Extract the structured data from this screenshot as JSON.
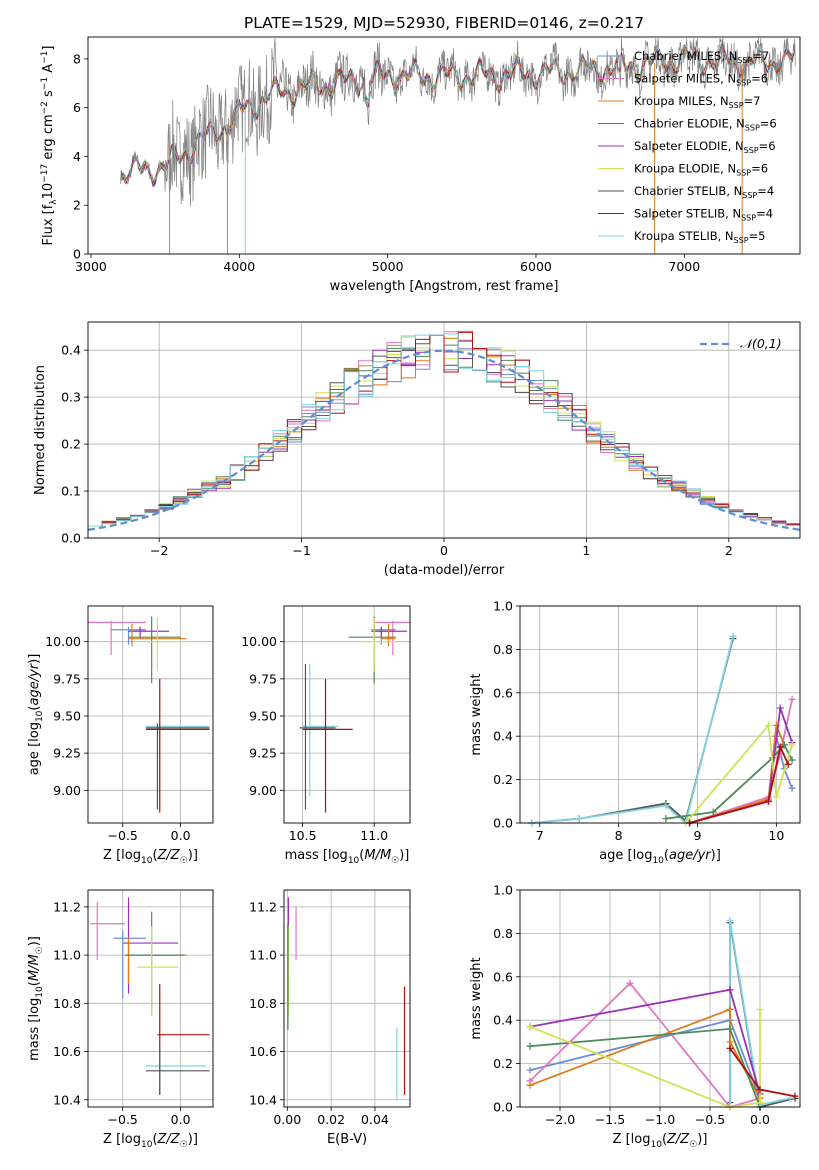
{
  "figure_title": "PLATE=1529, MJD=52930, FIBERID=0146, z=0.217",
  "colors": {
    "Chabrier MILES": "#6b8fd4",
    "Salpeter MILES": "#e377c2",
    "Kroupa MILES": "#e07b1a",
    "Chabrier ELODIE": "#4f8a5b",
    "Salpeter ELODIE": "#9b30b8",
    "Kroupa ELODIE": "#d4e157",
    "Chabrier STELIB": "#555555",
    "Salpeter STELIB": "#b01010",
    "Kroupa STELIB": "#80d4e0",
    "gauss": "#5b8fd6",
    "grid": "#b0b0b0"
  },
  "chart_data": [
    {
      "id": "spectrum",
      "type": "line",
      "title": "PLATE=1529, MJD=52930, FIBERID=0146, z=0.217",
      "xlabel": "wavelength [Angstrom, rest frame]",
      "ylabel": "Flux [fλ10⁻¹⁷ erg cm⁻² s⁻¹ A⁻¹]",
      "xlim": [
        2980,
        7780
      ],
      "ylim": [
        0,
        8.9
      ],
      "xticks": [
        3000,
        4000,
        5000,
        6000,
        7000
      ],
      "yticks": [
        0,
        2,
        4,
        6,
        8
      ],
      "grid": false,
      "legend_position": "right",
      "legend": [
        "Chabrier MILES, N_SSP=7",
        "Salpeter MILES, N_SSP=6",
        "Kroupa MILES, N_SSP=7",
        "Chabrier ELODIE, N_SSP=6",
        "Salpeter ELODIE, N_SSP=6",
        "Kroupa ELODIE, N_SSP=6",
        "Chabrier STELIB, N_SSP=4",
        "Salpeter STELIB, N_SSP=4",
        "Kroupa STELIB, N_SSP=5"
      ],
      "legend_display": [
        {
          "label": "Chabrier MILES, N",
          "sub": "SSP",
          "end": "=7"
        },
        {
          "label": "Salpeter MILES, N",
          "sub": "SSP",
          "end": "=6"
        },
        {
          "label": "Kroupa MILES, N",
          "sub": "SSP",
          "end": "=7"
        },
        {
          "label": "Chabrier ELODIE, N",
          "sub": "SSP",
          "end": "=6"
        },
        {
          "label": "Salpeter ELODIE, N",
          "sub": "SSP",
          "end": "=6"
        },
        {
          "label": "Kroupa ELODIE, N",
          "sub": "SSP",
          "end": "=6"
        },
        {
          "label": "Chabrier STELIB, N",
          "sub": "SSP",
          "end": "=4"
        },
        {
          "label": "Salpeter STELIB, N",
          "sub": "SSP",
          "end": "=4"
        },
        {
          "label": "Kroupa STELIB, N",
          "sub": "SSP",
          "end": "=5"
        }
      ],
      "continuum": [
        [
          3200,
          3.3
        ],
        [
          3500,
          3.6
        ],
        [
          3700,
          4.5
        ],
        [
          3900,
          5.2
        ],
        [
          4000,
          5.8
        ],
        [
          4200,
          6.5
        ],
        [
          4500,
          6.9
        ],
        [
          5000,
          7.3
        ],
        [
          5500,
          7.3
        ],
        [
          6000,
          7.4
        ],
        [
          6500,
          7.6
        ],
        [
          7000,
          8.0
        ],
        [
          7400,
          7.8
        ],
        [
          7750,
          8.0
        ]
      ],
      "dips": [
        [
          3530,
          0
        ],
        [
          3920,
          0
        ],
        [
          4040,
          0
        ],
        [
          6800,
          0
        ],
        [
          7390,
          0
        ]
      ]
    },
    {
      "id": "residuals",
      "type": "histogram",
      "xlabel": "(data-model)/error",
      "ylabel": "Normed distribution",
      "xlim": [
        -2.5,
        2.5
      ],
      "ylim": [
        0,
        0.46
      ],
      "xticks": [
        -2,
        -1,
        0,
        1,
        2
      ],
      "yticks": [
        0.0,
        0.1,
        0.2,
        0.3,
        0.4
      ],
      "grid": true,
      "legend": [
        "𝒩(0,1)"
      ],
      "legend_position": "top-right",
      "bin_width": 0.1
    },
    {
      "id": "age_vs_Z",
      "type": "scatter",
      "xlabel": "Z [log10(Z/Z☉)]",
      "ylabel": "age [log10(age/yr)]",
      "xlim": [
        -0.8,
        0.28
      ],
      "ylim": [
        8.78,
        10.24
      ],
      "xticks": [
        -0.5,
        0.0
      ],
      "yticks": [
        9.0,
        9.25,
        9.5,
        9.75,
        10.0
      ],
      "grid": true,
      "points": [
        {
          "m": "Salpeter MILES",
          "x": -0.6,
          "y": 10.13,
          "xe": [
            -0.8,
            -0.3
          ],
          "ye": [
            9.91,
            10.14
          ]
        },
        {
          "m": "Chabrier MILES",
          "x": -0.45,
          "y": 10.08,
          "xe": [
            -0.6,
            -0.3
          ],
          "ye": [
            9.98,
            10.1
          ]
        },
        {
          "m": "Salpeter ELODIE",
          "x": -0.35,
          "y": 10.07,
          "xe": [
            -0.45,
            -0.1
          ],
          "ye": [
            10.02,
            10.1
          ]
        },
        {
          "m": "Kroupa MILES",
          "x": -0.42,
          "y": 10.02,
          "xe": [
            -0.45,
            0.05
          ],
          "ye": [
            9.97,
            10.12
          ]
        },
        {
          "m": "Chabrier ELODIE",
          "x": -0.25,
          "y": 10.03,
          "xe": [
            -0.45,
            0.0
          ],
          "ye": [
            9.72,
            10.17
          ]
        },
        {
          "m": "Kroupa ELODIE",
          "x": -0.2,
          "y": 10.0,
          "xe": [
            -0.3,
            0.05
          ],
          "ye": [
            9.8,
            10.16
          ]
        },
        {
          "m": "Kroupa STELIB",
          "x": -0.18,
          "y": 9.43,
          "xe": [
            -0.3,
            0.25
          ],
          "ye": [
            8.96,
            9.45
          ]
        },
        {
          "m": "Chabrier STELIB",
          "x": -0.2,
          "y": 9.42,
          "xe": [
            -0.3,
            0.25
          ],
          "ye": [
            8.87,
            9.45
          ]
        },
        {
          "m": "Salpeter STELIB",
          "x": -0.18,
          "y": 9.41,
          "xe": [
            -0.3,
            0.25
          ],
          "ye": [
            8.85,
            9.75
          ]
        }
      ]
    },
    {
      "id": "age_vs_mass",
      "type": "scatter",
      "xlabel": "mass [log10(M/M☉)]",
      "ylabel": "",
      "xlim": [
        10.37,
        11.25
      ],
      "ylim": [
        8.78,
        10.24
      ],
      "xticks": [
        10.5,
        11.0
      ],
      "yticks": [
        9.0,
        9.25,
        9.5,
        9.75,
        10.0
      ],
      "grid": true,
      "points": [
        {
          "m": "Salpeter MILES",
          "x": 11.13,
          "y": 10.13,
          "xe": [
            11.0,
            11.25
          ],
          "ye": [
            9.91,
            10.14
          ]
        },
        {
          "m": "Chabrier MILES",
          "x": 11.05,
          "y": 10.08,
          "xe": [
            10.98,
            11.15
          ],
          "ye": [
            9.98,
            10.1
          ]
        },
        {
          "m": "Salpeter ELODIE",
          "x": 11.05,
          "y": 10.07,
          "xe": [
            10.98,
            11.23
          ],
          "ye": [
            10.02,
            10.1
          ]
        },
        {
          "m": "Kroupa MILES",
          "x": 11.1,
          "y": 10.02,
          "xe": [
            11.05,
            11.15
          ],
          "ye": [
            9.97,
            10.12
          ]
        },
        {
          "m": "Chabrier ELODIE",
          "x": 11.0,
          "y": 10.03,
          "xe": [
            10.82,
            11.15
          ],
          "ye": [
            9.72,
            10.17
          ]
        },
        {
          "m": "Kroupa ELODIE",
          "x": 11.0,
          "y": 10.0,
          "xe": [
            10.9,
            11.15
          ],
          "ye": [
            9.8,
            10.16
          ]
        },
        {
          "m": "Kroupa STELIB",
          "x": 10.55,
          "y": 9.43,
          "xe": [
            10.5,
            10.75
          ],
          "ye": [
            8.96,
            9.85
          ]
        },
        {
          "m": "Chabrier STELIB",
          "x": 10.52,
          "y": 9.42,
          "xe": [
            10.48,
            10.73
          ],
          "ye": [
            8.87,
            9.85
          ]
        },
        {
          "m": "Salpeter STELIB",
          "x": 10.66,
          "y": 9.41,
          "xe": [
            10.5,
            10.85
          ],
          "ye": [
            8.85,
            9.75
          ]
        }
      ]
    },
    {
      "id": "mass_weight_vs_age",
      "type": "line",
      "xlabel": "age [log10(age/yr)]",
      "ylabel": "mass weight",
      "xlim": [
        6.75,
        10.3
      ],
      "ylim": [
        0,
        1.0
      ],
      "xticks": [
        7,
        8,
        9,
        10
      ],
      "yticks": [
        0.0,
        0.2,
        0.4,
        0.6,
        0.8,
        1.0
      ],
      "grid": true,
      "series": [
        {
          "m": "Chabrier STELIB",
          "x": [
            6.9,
            7.5,
            8.6,
            8.85,
            9.45
          ],
          "y": [
            0.0,
            0.02,
            0.09,
            0.01,
            0.85
          ]
        },
        {
          "m": "Kroupa STELIB",
          "x": [
            6.9,
            7.5,
            8.6,
            8.85,
            9.45
          ],
          "y": [
            0.0,
            0.02,
            0.08,
            0.0,
            0.86
          ]
        },
        {
          "m": "Chabrier MILES",
          "x": [
            8.9,
            9.9,
            10.0,
            10.1,
            10.2
          ],
          "y": [
            0.0,
            0.1,
            0.4,
            0.25,
            0.16
          ]
        },
        {
          "m": "Salpeter MILES",
          "x": [
            8.9,
            9.9,
            10.05,
            10.2
          ],
          "y": [
            0.0,
            0.12,
            0.32,
            0.57
          ]
        },
        {
          "m": "Kroupa MILES",
          "x": [
            8.9,
            9.9,
            10.0,
            10.1
          ],
          "y": [
            0.0,
            0.11,
            0.45,
            0.36
          ]
        },
        {
          "m": "Chabrier ELODIE",
          "x": [
            8.6,
            9.2,
            9.95,
            10.1,
            10.2
          ],
          "y": [
            0.02,
            0.05,
            0.3,
            0.36,
            0.29
          ]
        },
        {
          "m": "Salpeter ELODIE",
          "x": [
            8.9,
            9.9,
            10.05,
            10.2
          ],
          "y": [
            0.0,
            0.1,
            0.53,
            0.37
          ]
        },
        {
          "m": "Kroupa ELODIE",
          "x": [
            8.85,
            9.9,
            10.0,
            10.2
          ],
          "y": [
            0.0,
            0.45,
            0.12,
            0.36
          ]
        },
        {
          "m": "Salpeter STELIB",
          "x": [
            8.9,
            9.9,
            10.05,
            10.15
          ],
          "y": [
            0.0,
            0.1,
            0.35,
            0.27
          ]
        }
      ]
    },
    {
      "id": "mass_vs_Z",
      "type": "scatter",
      "xlabel": "Z [log10(Z/Z☉)]",
      "ylabel": "mass [log10(M/M☉)]",
      "xlim": [
        -0.8,
        0.28
      ],
      "ylim": [
        10.37,
        11.27
      ],
      "xticks": [
        -0.5,
        0.0
      ],
      "yticks": [
        10.4,
        10.6,
        10.8,
        11.0,
        11.2
      ],
      "grid": true,
      "points": [
        {
          "m": "Salpeter MILES",
          "x": -0.72,
          "y": 11.13,
          "xe": [
            -0.78,
            -0.48
          ],
          "ye": [
            10.98,
            11.22
          ]
        },
        {
          "m": "Salpeter ELODIE",
          "x": -0.45,
          "y": 11.05,
          "xe": [
            -0.5,
            -0.02
          ],
          "ye": [
            10.84,
            11.24
          ]
        },
        {
          "m": "Chabrier MILES",
          "x": -0.5,
          "y": 11.07,
          "xe": [
            -0.58,
            -0.3
          ],
          "ye": [
            10.82,
            11.1
          ]
        },
        {
          "m": "Kroupa MILES",
          "x": -0.45,
          "y": 11.0,
          "xe": [
            -0.48,
            0.05
          ],
          "ye": [
            10.88,
            11.07
          ]
        },
        {
          "m": "Chabrier ELODIE",
          "x": -0.25,
          "y": 11.0,
          "xe": [
            -0.48,
            0.03
          ],
          "ye": [
            10.75,
            11.18
          ]
        },
        {
          "m": "Kroupa ELODIE",
          "x": -0.25,
          "y": 10.95,
          "xe": [
            -0.38,
            -0.02
          ],
          "ye": [
            10.75,
            11.12
          ]
        },
        {
          "m": "Salpeter STELIB",
          "x": -0.18,
          "y": 10.67,
          "xe": [
            -0.2,
            0.25
          ],
          "ye": [
            10.42,
            10.88
          ]
        },
        {
          "m": "Kroupa STELIB",
          "x": -0.18,
          "y": 10.54,
          "xe": [
            -0.3,
            0.22
          ],
          "ye": [
            10.42,
            10.62
          ]
        },
        {
          "m": "Chabrier STELIB",
          "x": -0.18,
          "y": 10.52,
          "xe": [
            -0.3,
            0.25
          ],
          "ye": [
            10.42,
            10.62
          ]
        }
      ]
    },
    {
      "id": "mass_vs_ebv",
      "type": "scatter",
      "xlabel": "E(B-V)",
      "ylabel": "",
      "xlim": [
        -0.0015,
        0.056
      ],
      "ylim": [
        10.37,
        11.27
      ],
      "xticks": [
        0.0,
        0.02,
        0.04
      ],
      "yticks": [
        10.4,
        10.6,
        10.8,
        11.0,
        11.2
      ],
      "grid": true,
      "points": [
        {
          "m": "Salpeter MILES",
          "x": 0.004,
          "y": 11.13,
          "xe": [
            0.004,
            0.004
          ],
          "ye": [
            10.98,
            11.2
          ]
        },
        {
          "m": "Salpeter ELODIE",
          "x": 0.0005,
          "y": 11.05,
          "xe": [
            0.0005,
            0.0005
          ],
          "ye": [
            10.95,
            11.24
          ]
        },
        {
          "m": "Kroupa ELODIE",
          "x": 0.0005,
          "y": 10.95,
          "xe": [
            0.0005,
            0.0005
          ],
          "ye": [
            10.75,
            11.12
          ]
        },
        {
          "m": "Chabrier ELODIE",
          "x": 0.0003,
          "y": 10.9,
          "xe": [
            0.0003,
            0.0003
          ],
          "ye": [
            10.69,
            11.13
          ]
        },
        {
          "m": "Salpeter STELIB",
          "x": 0.0535,
          "y": 10.67,
          "xe": [
            0.0535,
            0.0535
          ],
          "ye": [
            10.42,
            10.87
          ]
        },
        {
          "m": "Kroupa STELIB",
          "x": 0.05,
          "y": 10.55,
          "xe": [
            0.05,
            0.05
          ],
          "ye": [
            10.4,
            10.7
          ]
        }
      ]
    },
    {
      "id": "mass_weight_vs_Z",
      "type": "line",
      "xlabel": "Z [log10(Z/Z☉)]",
      "ylabel": "mass weight",
      "xlim": [
        -2.4,
        0.4
      ],
      "ylim": [
        0,
        1.0
      ],
      "xticks": [
        -2.0,
        -1.5,
        -1.0,
        -0.5,
        0.0
      ],
      "yticks": [
        0.0,
        0.2,
        0.4,
        0.6,
        0.8,
        1.0
      ],
      "grid": true,
      "series": [
        {
          "m": "Chabrier STELIB",
          "x": [
            -0.3,
            -0.3,
            0.0,
            0.35
          ],
          "y": [
            0.02,
            0.85,
            0.0,
            0.04
          ]
        },
        {
          "m": "Kroupa STELIB",
          "x": [
            -0.3,
            -0.3,
            0.0,
            0.3
          ],
          "y": [
            0.0,
            0.86,
            0.01,
            0.04
          ]
        },
        {
          "m": "Chabrier MILES",
          "x": [
            -2.3,
            -0.3,
            0.0
          ],
          "y": [
            0.17,
            0.4,
            0.04
          ]
        },
        {
          "m": "Salpeter MILES",
          "x": [
            -2.3,
            -1.3,
            -0.3,
            0.0
          ],
          "y": [
            0.12,
            0.57,
            0.0,
            0.04
          ]
        },
        {
          "m": "Kroupa MILES",
          "x": [
            -2.3,
            -0.3,
            -0.3,
            0.0
          ],
          "y": [
            0.1,
            0.45,
            0.3,
            0.04
          ]
        },
        {
          "m": "Chabrier ELODIE",
          "x": [
            -2.3,
            -0.3,
            0.0
          ],
          "y": [
            0.28,
            0.36,
            0.0
          ]
        },
        {
          "m": "Salpeter ELODIE",
          "x": [
            -2.3,
            -0.3,
            0.0
          ],
          "y": [
            0.37,
            0.54,
            0.06
          ]
        },
        {
          "m": "Kroupa ELODIE",
          "x": [
            -2.3,
            -0.3,
            0.0,
            0.0
          ],
          "y": [
            0.37,
            0.0,
            0.02,
            0.45
          ]
        },
        {
          "m": "Salpeter STELIB",
          "x": [
            -0.3,
            0.0,
            0.35
          ],
          "y": [
            0.27,
            0.08,
            0.05
          ]
        }
      ]
    }
  ]
}
